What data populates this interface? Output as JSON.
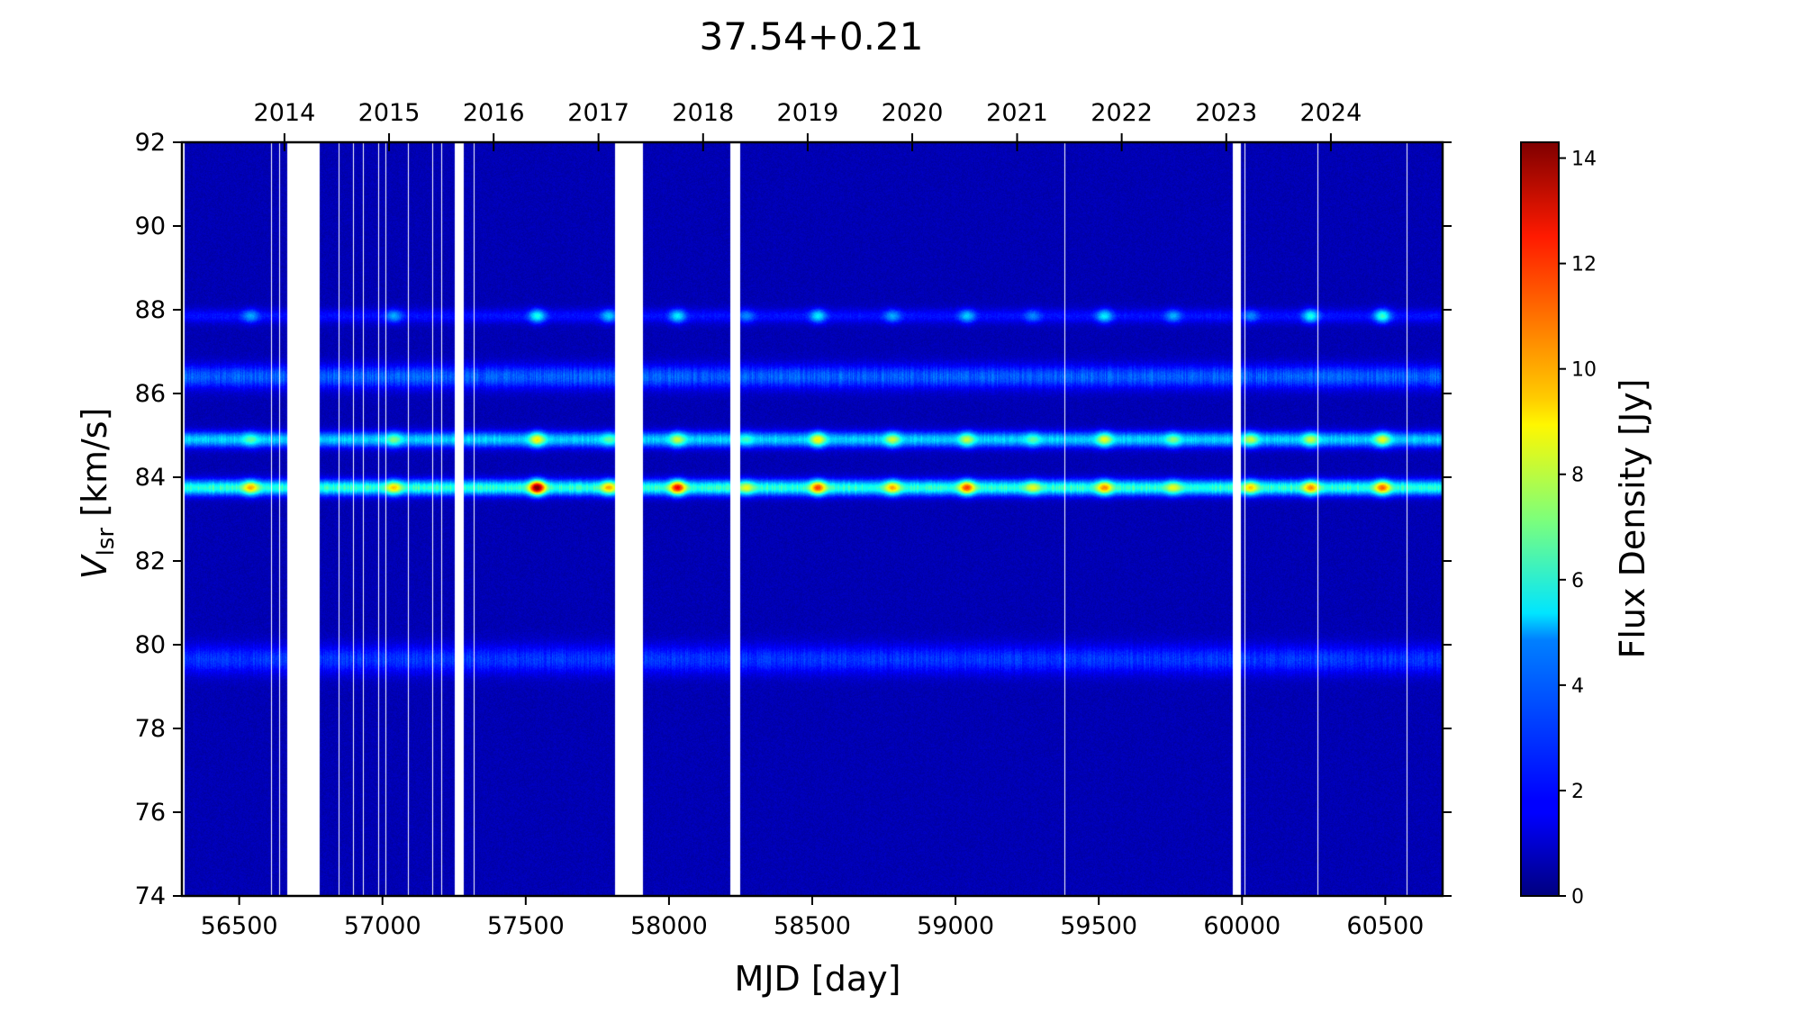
{
  "chart_data": {
    "type": "heatmap",
    "title": "37.54+0.21",
    "xlabel": "MJD [day]",
    "ylabel_main": "V",
    "ylabel_sub": "lsr",
    "ylabel_unit": " [km/s]",
    "colorbar_label": "Flux Density [Jy]",
    "colormap": "jet",
    "xlim": [
      56300,
      60700
    ],
    "ylim": [
      74,
      92
    ],
    "clim": [
      0,
      14.3
    ],
    "x_ticks": [
      56500,
      57000,
      57500,
      58000,
      58500,
      59000,
      59500,
      60000,
      60500
    ],
    "x_tick_labels": [
      "56500",
      "57000",
      "57500",
      "58000",
      "58500",
      "59000",
      "59500",
      "60000",
      "60500"
    ],
    "y_ticks": [
      74,
      76,
      78,
      80,
      82,
      84,
      86,
      88,
      90,
      92
    ],
    "y_tick_labels": [
      "74",
      "76",
      "78",
      "80",
      "82",
      "84",
      "86",
      "88",
      "90",
      "92"
    ],
    "top_axis_years": [
      {
        "label": "2014",
        "mjd": 56658
      },
      {
        "label": "2015",
        "mjd": 57023
      },
      {
        "label": "2016",
        "mjd": 57388
      },
      {
        "label": "2017",
        "mjd": 57754
      },
      {
        "label": "2018",
        "mjd": 58119
      },
      {
        "label": "2019",
        "mjd": 58484
      },
      {
        "label": "2020",
        "mjd": 58849
      },
      {
        "label": "2021",
        "mjd": 59215
      },
      {
        "label": "2022",
        "mjd": 59580
      },
      {
        "label": "2023",
        "mjd": 59945
      },
      {
        "label": "2024",
        "mjd": 60310
      }
    ],
    "colorbar_ticks": [
      0,
      2,
      4,
      6,
      8,
      10,
      12,
      14
    ],
    "colorbar_tick_labels": [
      "0",
      "2",
      "4",
      "6",
      "8",
      "10",
      "12",
      "14"
    ],
    "emission_features": [
      {
        "velocity": 83.75,
        "peak": 14.0,
        "baseline": 5.0
      },
      {
        "velocity": 84.9,
        "peak": 8.5,
        "baseline": 3.8
      },
      {
        "velocity": 86.4,
        "peak": 4.0,
        "baseline": 2.4
      },
      {
        "velocity": 87.85,
        "peak": 5.0,
        "baseline": 1.2
      },
      {
        "velocity": 79.65,
        "peak": 2.8,
        "baseline": 1.8
      }
    ],
    "flares": [
      {
        "mjd": 56540,
        "v84": 9.5,
        "v85": 6.0,
        "v88": 3.5
      },
      {
        "mjd": 57040,
        "v84": 9.0,
        "v85": 6.5,
        "v88": 3.5
      },
      {
        "mjd": 57540,
        "v84": 14.0,
        "v85": 8.5,
        "v88": 5.0
      },
      {
        "mjd": 57790,
        "v84": 9.5,
        "v85": 6.0,
        "v88": 4.0
      },
      {
        "mjd": 58030,
        "v84": 12.0,
        "v85": 7.5,
        "v88": 4.5
      },
      {
        "mjd": 58270,
        "v84": 8.0,
        "v85": 5.5,
        "v88": 3.0
      },
      {
        "mjd": 58520,
        "v84": 11.0,
        "v85": 8.5,
        "v88": 4.5
      },
      {
        "mjd": 58780,
        "v84": 9.5,
        "v85": 7.5,
        "v88": 3.5
      },
      {
        "mjd": 59040,
        "v84": 11.0,
        "v85": 7.5,
        "v88": 4.0
      },
      {
        "mjd": 59270,
        "v84": 8.0,
        "v85": 6.0,
        "v88": 3.0
      },
      {
        "mjd": 59520,
        "v84": 10.0,
        "v85": 8.0,
        "v88": 4.5
      },
      {
        "mjd": 59760,
        "v84": 8.0,
        "v85": 6.5,
        "v88": 3.5
      },
      {
        "mjd": 60030,
        "v84": 9.0,
        "v85": 7.5,
        "v88": 3.0
      },
      {
        "mjd": 60240,
        "v84": 10.0,
        "v85": 7.5,
        "v88": 5.0
      },
      {
        "mjd": 60490,
        "v84": 10.5,
        "v85": 8.0,
        "v88": 5.5
      }
    ],
    "data_gaps_mjd": [
      [
        56300,
        56310
      ],
      [
        56668,
        56780
      ],
      [
        57252,
        57283
      ],
      [
        57813,
        57908
      ],
      [
        58215,
        58248
      ],
      [
        59968,
        59995
      ],
      [
        56324,
        56326
      ],
      [
        56352,
        56354
      ],
      [
        56612,
        56615
      ],
      [
        56640,
        56643
      ],
      [
        56827,
        56829
      ],
      [
        56848,
        56851
      ],
      [
        56898,
        56900
      ],
      [
        56932,
        56934
      ],
      [
        56962,
        56964
      ],
      [
        56985,
        56987
      ],
      [
        57010,
        57012
      ],
      [
        57066,
        57068
      ],
      [
        57089,
        57091
      ],
      [
        57135,
        57137
      ],
      [
        57175,
        57177
      ],
      [
        57206,
        57208
      ],
      [
        57318,
        57320
      ],
      [
        57466,
        57467
      ],
      [
        57789,
        57791
      ],
      [
        58461,
        58463
      ],
      [
        59380,
        59382
      ],
      [
        59480,
        59482
      ],
      [
        60010,
        60012
      ],
      [
        60263,
        60265
      ],
      [
        60575,
        60576
      ]
    ]
  }
}
